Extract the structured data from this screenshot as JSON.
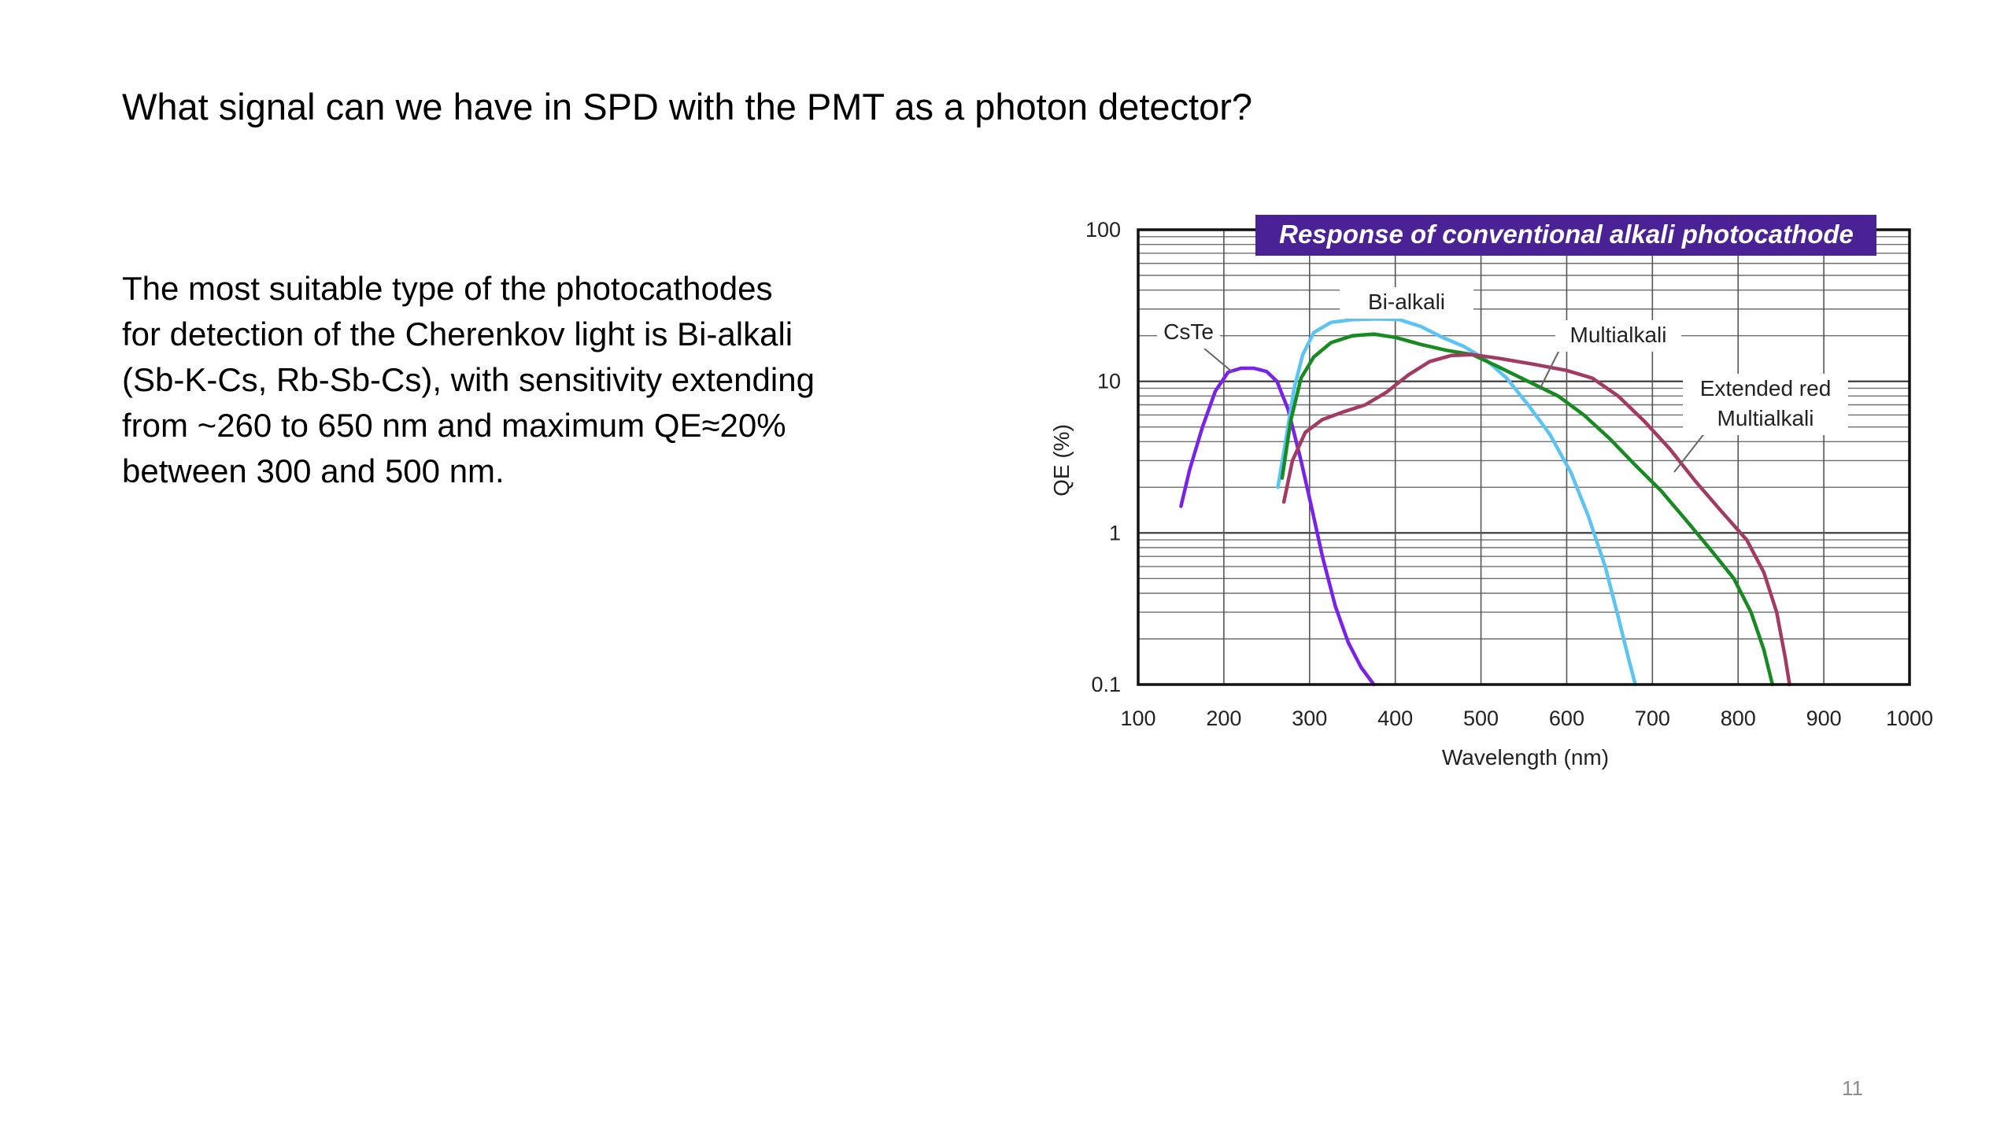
{
  "slide": {
    "title": "What signal can we have in SPD with the PMT as a photon detector?",
    "body_lines": [
      "The most suitable type of the photocathodes",
      "for detection of the Cherenkov light is Bi-alkali",
      "(Sb-K-Cs, Rb-Sb-Cs), with sensitivity extending",
      "from ~260 to 650 nm and maximum QE≈20%",
      "between 300 and 500 nm."
    ],
    "page_number": "11"
  },
  "chart_data": {
    "type": "line",
    "title": "Response of conventional alkali photocathode",
    "title_box_color": "#4b2196",
    "xlabel": "Wavelength (nm)",
    "ylabel": "QE (%)",
    "xlim": [
      100,
      1000
    ],
    "ylim": [
      0.1,
      100
    ],
    "yscale": "log",
    "grid": true,
    "x_ticks": [
      "100",
      "200",
      "300",
      "400",
      "500",
      "600",
      "700",
      "800",
      "900",
      "1000"
    ],
    "y_ticks": [
      "0.1",
      "1",
      "10",
      "100"
    ],
    "series": [
      {
        "name": "CsTe",
        "color": "#7a22e8",
        "points": [
          [
            150,
            1.5
          ],
          [
            160,
            2.6
          ],
          [
            175,
            5.0
          ],
          [
            190,
            8.6
          ],
          [
            205,
            11.5
          ],
          [
            220,
            12.2
          ],
          [
            235,
            12.2
          ],
          [
            250,
            11.6
          ],
          [
            262,
            10.0
          ],
          [
            275,
            6.5
          ],
          [
            290,
            3.0
          ],
          [
            302,
            1.5
          ],
          [
            315,
            0.7
          ],
          [
            330,
            0.33
          ],
          [
            345,
            0.19
          ],
          [
            360,
            0.13
          ],
          [
            375,
            0.1
          ]
        ]
      },
      {
        "name": "Bi-alkali",
        "color": "#5bc4f2",
        "points": [
          [
            263,
            2.0
          ],
          [
            272,
            4.0
          ],
          [
            282,
            9.0
          ],
          [
            292,
            15.0
          ],
          [
            305,
            21.0
          ],
          [
            325,
            24.5
          ],
          [
            350,
            25.5
          ],
          [
            380,
            25.8
          ],
          [
            405,
            25.5
          ],
          [
            430,
            23.0
          ],
          [
            455,
            19.5
          ],
          [
            480,
            17.0
          ],
          [
            505,
            14.0
          ],
          [
            530,
            10.5
          ],
          [
            555,
            7.0
          ],
          [
            580,
            4.5
          ],
          [
            605,
            2.5
          ],
          [
            625,
            1.3
          ],
          [
            645,
            0.6
          ],
          [
            660,
            0.28
          ],
          [
            672,
            0.15
          ],
          [
            680,
            0.1
          ]
        ]
      },
      {
        "name": "Multialkali",
        "color": "#178a22",
        "points": [
          [
            268,
            2.3
          ],
          [
            278,
            5.5
          ],
          [
            290,
            10.5
          ],
          [
            305,
            14.5
          ],
          [
            325,
            18.0
          ],
          [
            350,
            20.0
          ],
          [
            375,
            20.5
          ],
          [
            400,
            19.5
          ],
          [
            430,
            17.5
          ],
          [
            460,
            16.0
          ],
          [
            490,
            15.0
          ],
          [
            520,
            12.5
          ],
          [
            555,
            10.0
          ],
          [
            590,
            8.0
          ],
          [
            620,
            6.0
          ],
          [
            650,
            4.2
          ],
          [
            680,
            2.8
          ],
          [
            710,
            1.9
          ],
          [
            740,
            1.2
          ],
          [
            770,
            0.75
          ],
          [
            795,
            0.5
          ],
          [
            815,
            0.3
          ],
          [
            830,
            0.17
          ],
          [
            840,
            0.1
          ]
        ]
      },
      {
        "name": "Extended red Multialkali",
        "color": "#a33a64",
        "points": [
          [
            270,
            1.6
          ],
          [
            280,
            3.0
          ],
          [
            295,
            4.6
          ],
          [
            315,
            5.6
          ],
          [
            340,
            6.3
          ],
          [
            365,
            7.0
          ],
          [
            390,
            8.5
          ],
          [
            415,
            11.0
          ],
          [
            440,
            13.5
          ],
          [
            465,
            14.8
          ],
          [
            490,
            15.0
          ],
          [
            520,
            14.2
          ],
          [
            560,
            13.0
          ],
          [
            600,
            11.8
          ],
          [
            630,
            10.5
          ],
          [
            660,
            8.0
          ],
          [
            690,
            5.5
          ],
          [
            720,
            3.6
          ],
          [
            750,
            2.2
          ],
          [
            780,
            1.4
          ],
          [
            810,
            0.9
          ],
          [
            830,
            0.55
          ],
          [
            845,
            0.3
          ],
          [
            855,
            0.15
          ],
          [
            860,
            0.1
          ]
        ]
      }
    ],
    "annotations": [
      {
        "text": "Bi-alkali"
      },
      {
        "text": "CsTe"
      },
      {
        "text": "Multialkali"
      },
      {
        "text": "Extended red"
      },
      {
        "text": "Multialkali"
      }
    ]
  }
}
